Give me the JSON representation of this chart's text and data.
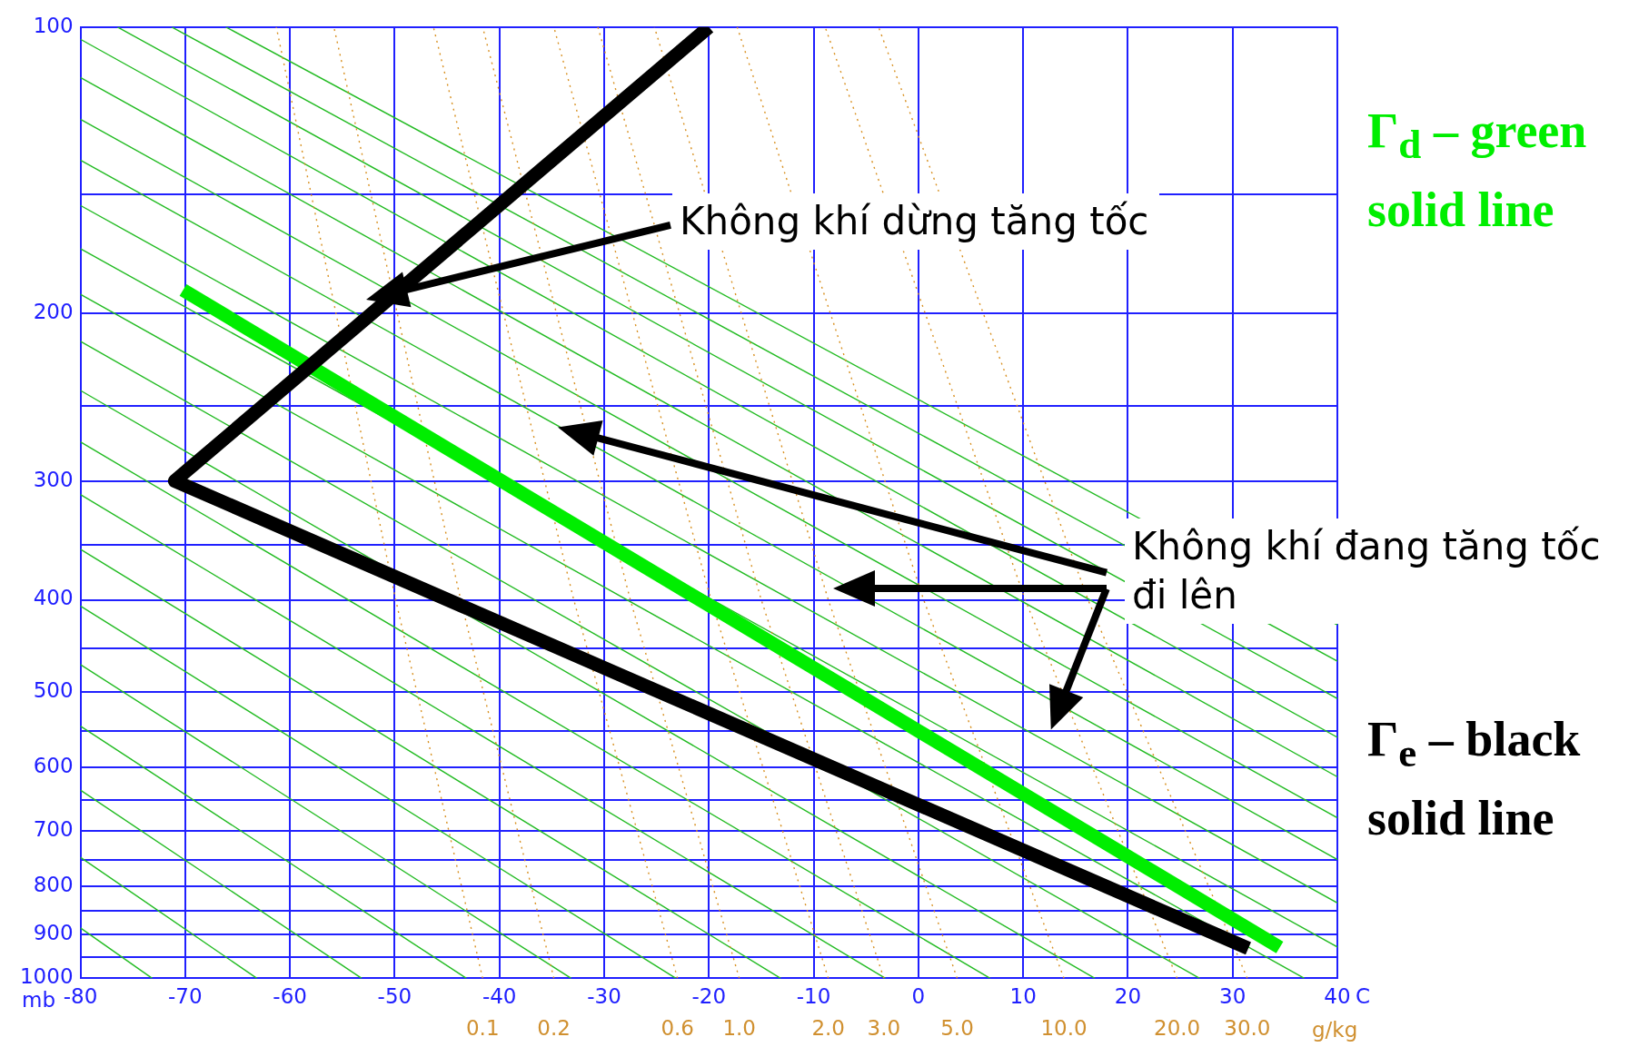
{
  "chart_data": {
    "type": "line",
    "xlim": [
      -80,
      40
    ],
    "xticks": [
      -80,
      -70,
      -60,
      -50,
      -40,
      -30,
      -20,
      -10,
      0,
      10,
      20,
      30,
      40
    ],
    "xlabel": "C",
    "ylim": [
      1000,
      100
    ],
    "yticks": [
      100,
      {
        "value": 150,
        "label": null
      },
      200,
      {
        "value": 250,
        "label": null
      },
      300,
      {
        "value": 350,
        "label": null
      },
      400,
      {
        "value": 450,
        "label": null
      },
      500,
      {
        "value": 550,
        "label": null
      },
      600,
      {
        "value": 650,
        "label": null
      },
      700,
      {
        "value": 750,
        "label": null
      },
      800,
      {
        "value": 850,
        "label": null
      },
      900,
      {
        "value": 950,
        "label": null
      },
      1000
    ],
    "ylabel": "mb",
    "log": "y",
    "grid": true,
    "legend": "right",
    "marker": "none",
    "annotations": [
      "Không khí dừng tăng tốc",
      "Không khí đang tăng tốc đi lên",
      "g/kg",
      {
        "text": "0.1",
        "x": -41.6,
        "y": 1000
      },
      {
        "text": "0.2",
        "x": -34.8,
        "y": 1000
      },
      {
        "text": "0.6",
        "x": -23,
        "y": 1000
      },
      {
        "text": "1.0",
        "x": -17.1,
        "y": 1000
      },
      {
        "text": "2.0",
        "x": -8.6,
        "y": 1000
      },
      {
        "text": "3.0",
        "x": -3.3,
        "y": 1000
      },
      {
        "text": "5.0",
        "x": 3.7,
        "y": 1000
      },
      {
        "text": "10.0",
        "x": 13.9,
        "y": 1000
      },
      {
        "text": "20.0",
        "x": 24.7,
        "y": 1000
      },
      {
        "text": "30.0",
        "x": 31.4,
        "y": 1000
      }
    ],
    "series": [
      {
        "color": "#22bb22",
        "line_style": "solid",
        "x": [
          -80,
          -73.15
        ],
        "values": [
          885,
          1000
        ]
      },
      {
        "color": "#22bb22",
        "line_style": "solid",
        "x": [
          -80,
          -63.15
        ],
        "values": [
          746,
          1000
        ]
      },
      {
        "color": "#22bb22",
        "line_style": "solid",
        "x": [
          -80,
          -53.15
        ],
        "values": [
          634,
          1000
        ]
      },
      {
        "color": "#22bb22",
        "line_style": "solid",
        "x": [
          -80,
          -43.15
        ],
        "values": [
          543,
          1000
        ]
      },
      {
        "color": "#22bb22",
        "line_style": "solid",
        "x": [
          -80,
          -33.15
        ],
        "values": [
          468,
          1000
        ]
      },
      {
        "color": "#22bb22",
        "line_style": "solid",
        "x": [
          -80,
          -23.15
        ],
        "values": [
          406,
          1000
        ]
      },
      {
        "color": "#22bb22",
        "line_style": "solid",
        "x": [
          -80,
          -13.15
        ],
        "values": [
          354,
          1000
        ]
      },
      {
        "color": "#22bb22",
        "line_style": "solid",
        "x": [
          -80,
          -3.15
        ],
        "values": [
          310,
          1000
        ]
      },
      {
        "color": "#22bb22",
        "line_style": "solid",
        "x": [
          -80,
          6.85
        ],
        "values": [
          273,
          1000
        ]
      },
      {
        "color": "#22bb22",
        "line_style": "solid",
        "x": [
          -80,
          16.85
        ],
        "values": [
          241,
          1000
        ]
      },
      {
        "color": "#22bb22",
        "line_style": "solid",
        "x": [
          -80,
          26.85
        ],
        "values": [
          214,
          1000
        ]
      },
      {
        "color": "#22bb22",
        "line_style": "solid",
        "x": [
          -80,
          36.85
        ],
        "values": [
          191,
          1000
        ]
      },
      {
        "color": "#22bb22",
        "line_style": "solid",
        "x": [
          -80,
          40
        ],
        "values": [
          171,
          927
        ]
      },
      {
        "color": "#22bb22",
        "line_style": "solid",
        "x": [
          -80,
          40
        ],
        "values": [
          154,
          833
        ]
      },
      {
        "color": "#22bb22",
        "line_style": "solid",
        "x": [
          -80,
          40
        ],
        "values": [
          138,
          750
        ]
      },
      {
        "color": "#22bb22",
        "line_style": "solid",
        "x": [
          -80,
          40
        ],
        "values": [
          125,
          678
        ]
      },
      {
        "color": "#22bb22",
        "line_style": "solid",
        "x": [
          -80,
          40
        ],
        "values": [
          113,
          614
        ]
      },
      {
        "color": "#22bb22",
        "line_style": "solid",
        "x": [
          -80,
          40
        ],
        "values": [
          103,
          558
        ]
      },
      {
        "color": "#22bb22",
        "line_style": "solid",
        "x": [
          -76.45,
          40
        ],
        "values": [
          100,
          508
        ]
      },
      {
        "color": "#22bb22",
        "line_style": "solid",
        "x": [
          -71.27,
          40
        ],
        "values": [
          100,
          464
        ]
      },
      {
        "color": "#22bb22",
        "line_style": "solid",
        "x": [
          -66.1,
          40
        ],
        "values": [
          100,
          425
        ]
      },
      {
        "color": "#d89020",
        "line_style": "dotted",
        "x": [
          -41.6,
          -49.9,
          -61.3
        ],
        "values": [
          1000,
          400,
          100
        ]
      },
      {
        "color": "#d89020",
        "line_style": "dotted",
        "x": [
          -34.8,
          -43.7,
          -55.8
        ],
        "values": [
          1000,
          400,
          100
        ]
      },
      {
        "color": "#d89020",
        "line_style": "dotted",
        "x": [
          -23,
          -32.9,
          -46.3
        ],
        "values": [
          1000,
          400,
          100
        ]
      },
      {
        "color": "#d89020",
        "line_style": "dotted",
        "x": [
          -17.1,
          -27.5,
          -41.6
        ],
        "values": [
          1000,
          400,
          100
        ]
      },
      {
        "color": "#d89020",
        "line_style": "dotted",
        "x": [
          -8.6,
          -19.8,
          -34.8
        ],
        "values": [
          1000,
          400,
          100
        ]
      },
      {
        "color": "#d89020",
        "line_style": "dotted",
        "x": [
          -3.3,
          -15,
          -30.6
        ],
        "values": [
          1000,
          400,
          100
        ]
      },
      {
        "color": "#d89020",
        "line_style": "dotted",
        "x": [
          3.7,
          -8.6,
          -25.2
        ],
        "values": [
          1000,
          400,
          100
        ]
      },
      {
        "color": "#d89020",
        "line_style": "dotted",
        "x": [
          13.9,
          0.5,
          -17.3
        ],
        "values": [
          1000,
          400,
          100
        ]
      },
      {
        "color": "#d89020",
        "line_style": "dotted",
        "x": [
          24.7,
          10.2,
          -8.9
        ],
        "values": [
          1000,
          400,
          100
        ]
      },
      {
        "color": "#d89020",
        "line_style": "dotted",
        "x": [
          31.4,
          16.2,
          -3.8
        ],
        "values": [
          1000,
          400,
          100
        ]
      },
      {
        "name": "Γ$_{d}$ – green solid line",
        "color": "#00ee00",
        "line_style": "solid",
        "x": [
          -70.2,
          34.5
        ],
        "values": [
          189,
          928
        ]
      },
      {
        "name": "Γ$_{e}$ – black solid line",
        "color": "#000000",
        "line_style": "solid",
        "x": [
          -20,
          -71,
          31.5
        ],
        "values": [
          100,
          300,
          930
        ]
      }
    ]
  }
}
